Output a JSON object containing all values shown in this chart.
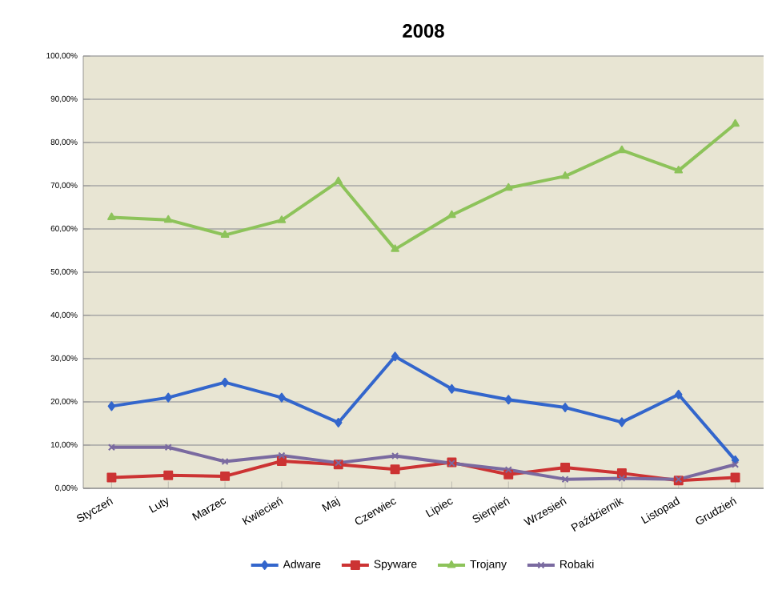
{
  "chart_data": {
    "type": "line",
    "title": "2008",
    "categories": [
      "Styczeń",
      "Luty",
      "Marzec",
      "Kwiecień",
      "Maj",
      "Czerwiec",
      "Lipiec",
      "Sierpień",
      "Wrzesień",
      "Październik",
      "Listopad",
      "Grudzień"
    ],
    "series": [
      {
        "name": "Adware",
        "color": "#3366cc",
        "marker": "diamond",
        "values": [
          19,
          21,
          24.5,
          21,
          15.2,
          30.5,
          23,
          20.5,
          18.7,
          15.3,
          21.7,
          6.5
        ]
      },
      {
        "name": "Spyware",
        "color": "#cc3333",
        "marker": "square",
        "values": [
          2.5,
          3,
          2.8,
          6.3,
          5.5,
          4.4,
          6,
          3.2,
          4.8,
          3.5,
          1.8,
          2.5
        ]
      },
      {
        "name": "Trojany",
        "color": "#8dc35a",
        "marker": "triangle",
        "values": [
          62.7,
          62.1,
          58.6,
          62,
          71,
          55.3,
          63.2,
          69.5,
          72.2,
          78.2,
          73.5,
          84.3
        ]
      },
      {
        "name": "Robaki",
        "color": "#7a6aa0",
        "marker": "cross",
        "values": [
          9.5,
          9.5,
          6.2,
          7.6,
          5.9,
          7.5,
          5.8,
          4.3,
          2.1,
          2.3,
          2.1,
          5.5
        ]
      }
    ],
    "ylim": [
      0,
      100
    ],
    "yticks": [
      {
        "value": 0,
        "label": "0,00%"
      },
      {
        "value": 10,
        "label": "10,00%"
      },
      {
        "value": 20,
        "label": "20,00%"
      },
      {
        "value": 30,
        "label": "30,00%"
      },
      {
        "value": 40,
        "label": "40,00%"
      },
      {
        "value": 50,
        "label": "50,00%"
      },
      {
        "value": 60,
        "label": "60,00%"
      },
      {
        "value": 70,
        "label": "70,00%"
      },
      {
        "value": 80,
        "label": "80,00%"
      },
      {
        "value": 90,
        "label": "90,00%"
      },
      {
        "value": 100,
        "label": "100,00%"
      }
    ],
    "grid": "y",
    "legend": "bottom",
    "line_style": "solid"
  }
}
